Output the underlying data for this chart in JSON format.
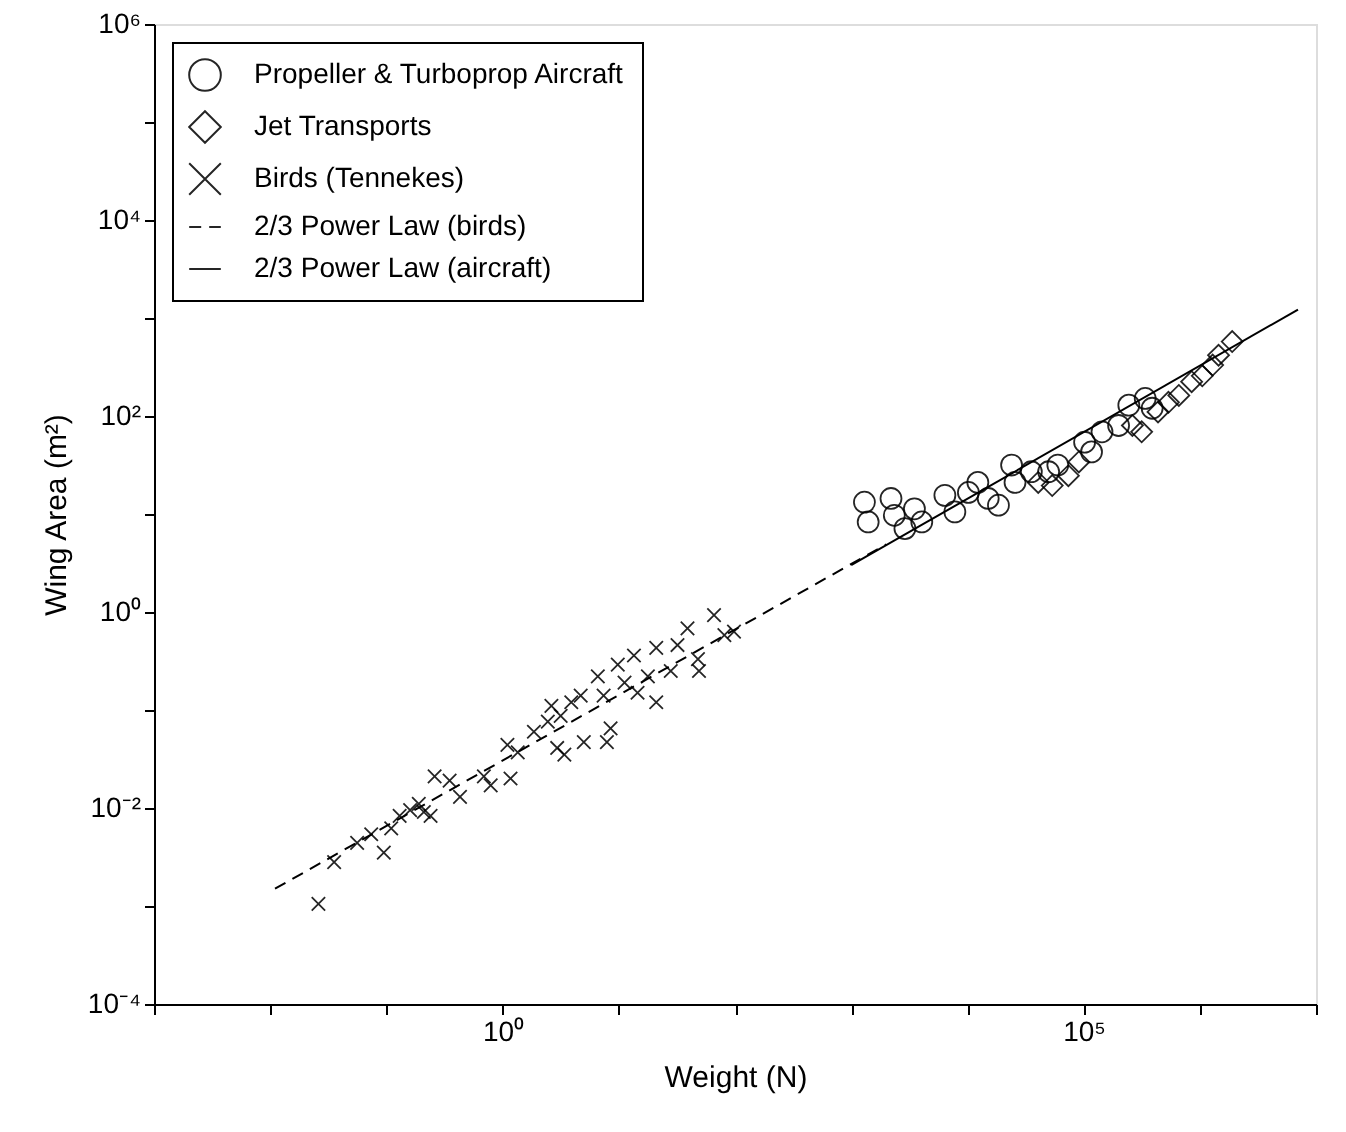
{
  "chart_data": {
    "type": "scatter",
    "xlabel": "Weight (N)",
    "ylabel": "Wing Area (m²)",
    "log": "xy",
    "grid": false,
    "legend": "top left",
    "xlim": [
      0.001,
      10000000
    ],
    "ylim": [
      0.0001,
      1000000
    ],
    "xticks": [
      {
        "value": 0.001,
        "label": null
      },
      {
        "value": 0.01,
        "label": null
      },
      {
        "value": 0.1,
        "label": null
      },
      {
        "value": 1,
        "label": "10⁰"
      },
      {
        "value": 10,
        "label": null
      },
      {
        "value": 100,
        "label": null
      },
      {
        "value": 1000,
        "label": null
      },
      {
        "value": 10000,
        "label": null
      },
      {
        "value": 100000,
        "label": "10⁵"
      },
      {
        "value": 1000000,
        "label": null
      },
      {
        "value": 10000000,
        "label": null
      }
    ],
    "yticks": [
      {
        "value": 0.0001,
        "label": "10⁻⁴"
      },
      {
        "value": 0.001,
        "label": null
      },
      {
        "value": 0.01,
        "label": "10⁻²"
      },
      {
        "value": 0.1,
        "label": null
      },
      {
        "value": 1,
        "label": "10⁰"
      },
      {
        "value": 10,
        "label": null
      },
      {
        "value": 100,
        "label": "10²"
      },
      {
        "value": 1000,
        "label": null
      },
      {
        "value": 10000,
        "label": "10⁴"
      },
      {
        "value": 100000,
        "label": null
      },
      {
        "value": 1000000,
        "label": "10⁶"
      }
    ],
    "series": [
      {
        "name": "Propeller & Turboprop Aircraft",
        "marker": "circle",
        "color": "#000000",
        "x": [
          1300,
          1400,
          2200,
          2350,
          2900,
          3500,
          4050,
          6400,
          7800,
          10200,
          12300,
          15100,
          18500,
          24000,
          25700,
          35500,
          50000,
          60000,
          102000,
          117000,
          144000,
          200000,
          245000,
          339000,
          389000
        ],
        "values": [
          13.2,
          8.3,
          14.4,
          9.7,
          7.1,
          11.3,
          8.3,
          15.5,
          10.5,
          16.6,
          21,
          14.4,
          12.3,
          31.6,
          21,
          27,
          27,
          31.6,
          54,
          43,
          69,
          80,
          129,
          151,
          120
        ]
      },
      {
        "name": "Jet Transports",
        "marker": "diamond",
        "color": "#000000",
        "x": [
          40700,
          53700,
          74000,
          91000,
          263000,
          316000,
          437000,
          537000,
          660000,
          851000,
          1050000,
          1290000,
          1450000,
          1900000
        ],
        "values": [
          21,
          19.5,
          24.6,
          34,
          80,
          69,
          110,
          138,
          162,
          224,
          257,
          331,
          417,
          575
        ]
      },
      {
        "name": "Birds (Tennekes)",
        "marker": "cross",
        "color": "#000000",
        "x": [
          0.026,
          0.0355,
          0.056,
          0.074,
          0.095,
          0.11,
          0.13,
          0.16,
          0.19,
          0.21,
          0.24,
          0.26,
          0.35,
          0.43,
          0.69,
          0.79,
          1.17,
          1.1,
          1.35,
          1.86,
          2.45,
          2.63,
          3.16,
          3.9,
          4.7,
          3.4,
          2.95,
          5.0,
          6.6,
          7.4,
          8.5,
          7.9,
          9.8,
          11.2,
          13.5,
          14.5,
          17.8,
          21,
          21,
          28,
          32,
          39,
          48,
          49,
          66,
          81,
          98
        ],
        "values": [
          0.00105,
          0.0028,
          0.0044,
          0.0054,
          0.0035,
          0.0062,
          0.0083,
          0.0095,
          0.011,
          0.0091,
          0.0083,
          0.021,
          0.019,
          0.013,
          0.021,
          0.017,
          0.02,
          0.044,
          0.037,
          0.06,
          0.076,
          0.11,
          0.087,
          0.12,
          0.14,
          0.035,
          0.041,
          0.047,
          0.22,
          0.14,
          0.065,
          0.047,
          0.29,
          0.19,
          0.36,
          0.15,
          0.22,
          0.12,
          0.43,
          0.25,
          0.46,
          0.68,
          0.33,
          0.25,
          0.93,
          0.58,
          0.63
        ]
      },
      {
        "name": "2/3 Power Law (birds)",
        "type": "line",
        "line_style": "dashed",
        "color": "#000000",
        "x": [
          0.011,
          2000
        ],
        "values": [
          0.0015,
          4.9
        ]
      },
      {
        "name": "2/3 Power Law (aircraft)",
        "type": "line",
        "line_style": "solid",
        "color": "#000000",
        "x": [
          1000,
          7000000
        ],
        "values": [
          3.0,
          1220
        ]
      }
    ]
  }
}
